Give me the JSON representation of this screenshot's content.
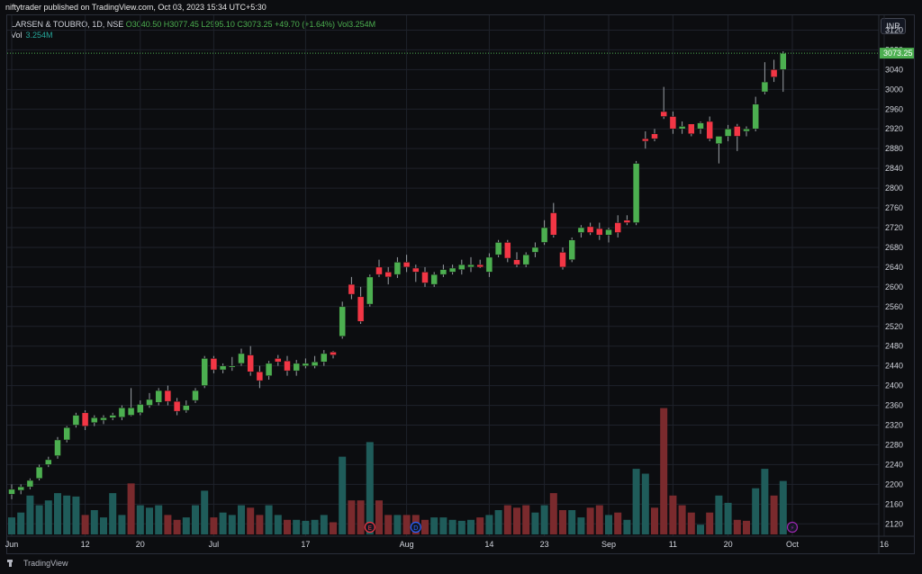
{
  "header": {
    "publish_text": "niftytrader published on TradingView.com, Oct 03, 2023 15:34 UTC+5:30",
    "symbol": "LARSEN & TOUBRO, 1D, NSE",
    "open": "O3040.50",
    "high": "H3077.45",
    "low": "L2995.10",
    "close": "C3073.25",
    "change": "+49.70 (+1.64%)",
    "vol_inline": "Vol3.254M",
    "vol_label": "Vol",
    "vol_value": "3.254M",
    "currency_button": "INR"
  },
  "footer": {
    "logo_text": "TradingView"
  },
  "colors": {
    "up": "#4caf50",
    "down": "#f23645",
    "vol_up": "#1f5c5a",
    "vol_down": "#7a2a2d",
    "grid": "#1f222b",
    "text": "#d1d4dc",
    "last_price": "#4caf50"
  },
  "chart_data": {
    "type": "candlestick",
    "last_price": "3073.25",
    "y_ticks": [
      2120,
      2160,
      2200,
      2240,
      2280,
      2320,
      2360,
      2400,
      2440,
      2480,
      2520,
      2560,
      2600,
      2640,
      2680,
      2720,
      2760,
      2800,
      2840,
      2880,
      2920,
      2960,
      3000,
      3040,
      3080,
      3120
    ],
    "y_range": [
      2095,
      3150
    ],
    "x_ticks": [
      {
        "label": "Jun",
        "index": 0
      },
      {
        "label": "12",
        "index": 8
      },
      {
        "label": "20",
        "index": 14
      },
      {
        "label": "Jul",
        "index": 22
      },
      {
        "label": "17",
        "index": 32
      },
      {
        "label": "Aug",
        "index": 43
      },
      {
        "label": "14",
        "index": 52
      },
      {
        "label": "23",
        "index": 58
      },
      {
        "label": "Sep",
        "index": 65
      },
      {
        "label": "11",
        "index": 72
      },
      {
        "label": "20",
        "index": 78
      },
      {
        "label": "Oct",
        "index": 85
      },
      {
        "label": "16",
        "index": 95
      }
    ],
    "event_markers": [
      {
        "label": "E",
        "index": 39,
        "color": "#f23645"
      },
      {
        "label": "D",
        "index": 44,
        "color": "#2962ff"
      },
      {
        "label": "⚡",
        "index": 85,
        "color": "#9c27b0"
      }
    ],
    "candles": [
      {
        "o": 2180,
        "h": 2200,
        "l": 2170,
        "c": 2190
      },
      {
        "o": 2188,
        "h": 2200,
        "l": 2180,
        "c": 2195
      },
      {
        "o": 2195,
        "h": 2212,
        "l": 2190,
        "c": 2208
      },
      {
        "o": 2212,
        "h": 2240,
        "l": 2208,
        "c": 2235
      },
      {
        "o": 2240,
        "h": 2256,
        "l": 2235,
        "c": 2250
      },
      {
        "o": 2258,
        "h": 2296,
        "l": 2252,
        "c": 2290
      },
      {
        "o": 2290,
        "h": 2318,
        "l": 2285,
        "c": 2315
      },
      {
        "o": 2320,
        "h": 2345,
        "l": 2315,
        "c": 2340
      },
      {
        "o": 2345,
        "h": 2350,
        "l": 2310,
        "c": 2318
      },
      {
        "o": 2325,
        "h": 2340,
        "l": 2318,
        "c": 2335
      },
      {
        "o": 2330,
        "h": 2340,
        "l": 2322,
        "c": 2335
      },
      {
        "o": 2335,
        "h": 2345,
        "l": 2330,
        "c": 2340
      },
      {
        "o": 2336,
        "h": 2360,
        "l": 2330,
        "c": 2355
      },
      {
        "o": 2340,
        "h": 2395,
        "l": 2338,
        "c": 2355
      },
      {
        "o": 2345,
        "h": 2370,
        "l": 2340,
        "c": 2362
      },
      {
        "o": 2360,
        "h": 2385,
        "l": 2355,
        "c": 2372
      },
      {
        "o": 2366,
        "h": 2395,
        "l": 2360,
        "c": 2390
      },
      {
        "o": 2390,
        "h": 2400,
        "l": 2360,
        "c": 2368
      },
      {
        "o": 2368,
        "h": 2375,
        "l": 2340,
        "c": 2348
      },
      {
        "o": 2350,
        "h": 2370,
        "l": 2345,
        "c": 2360
      },
      {
        "o": 2370,
        "h": 2395,
        "l": 2365,
        "c": 2390
      },
      {
        "o": 2400,
        "h": 2460,
        "l": 2395,
        "c": 2455
      },
      {
        "o": 2455,
        "h": 2460,
        "l": 2425,
        "c": 2432
      },
      {
        "o": 2432,
        "h": 2445,
        "l": 2425,
        "c": 2440
      },
      {
        "o": 2438,
        "h": 2458,
        "l": 2430,
        "c": 2440
      },
      {
        "o": 2445,
        "h": 2475,
        "l": 2440,
        "c": 2465
      },
      {
        "o": 2462,
        "h": 2480,
        "l": 2420,
        "c": 2428
      },
      {
        "o": 2428,
        "h": 2440,
        "l": 2395,
        "c": 2410
      },
      {
        "o": 2420,
        "h": 2450,
        "l": 2412,
        "c": 2445
      },
      {
        "o": 2455,
        "h": 2462,
        "l": 2440,
        "c": 2448
      },
      {
        "o": 2450,
        "h": 2460,
        "l": 2420,
        "c": 2430
      },
      {
        "o": 2430,
        "h": 2452,
        "l": 2420,
        "c": 2445
      },
      {
        "o": 2440,
        "h": 2455,
        "l": 2435,
        "c": 2445
      },
      {
        "o": 2440,
        "h": 2460,
        "l": 2435,
        "c": 2448
      },
      {
        "o": 2448,
        "h": 2472,
        "l": 2440,
        "c": 2465
      },
      {
        "o": 2468,
        "h": 2470,
        "l": 2455,
        "c": 2462
      },
      {
        "o": 2500,
        "h": 2570,
        "l": 2495,
        "c": 2560
      },
      {
        "o": 2605,
        "h": 2620,
        "l": 2575,
        "c": 2585
      },
      {
        "o": 2580,
        "h": 2600,
        "l": 2525,
        "c": 2530
      },
      {
        "o": 2565,
        "h": 2625,
        "l": 2560,
        "c": 2620
      },
      {
        "o": 2640,
        "h": 2655,
        "l": 2620,
        "c": 2625
      },
      {
        "o": 2630,
        "h": 2640,
        "l": 2605,
        "c": 2620
      },
      {
        "o": 2625,
        "h": 2660,
        "l": 2618,
        "c": 2650
      },
      {
        "o": 2650,
        "h": 2665,
        "l": 2630,
        "c": 2640
      },
      {
        "o": 2638,
        "h": 2645,
        "l": 2610,
        "c": 2630
      },
      {
        "o": 2630,
        "h": 2640,
        "l": 2600,
        "c": 2608
      },
      {
        "o": 2605,
        "h": 2630,
        "l": 2600,
        "c": 2625
      },
      {
        "o": 2625,
        "h": 2645,
        "l": 2620,
        "c": 2635
      },
      {
        "o": 2630,
        "h": 2645,
        "l": 2625,
        "c": 2638
      },
      {
        "o": 2635,
        "h": 2655,
        "l": 2625,
        "c": 2645
      },
      {
        "o": 2640,
        "h": 2660,
        "l": 2630,
        "c": 2645
      },
      {
        "o": 2645,
        "h": 2655,
        "l": 2638,
        "c": 2640
      },
      {
        "o": 2630,
        "h": 2668,
        "l": 2620,
        "c": 2660
      },
      {
        "o": 2665,
        "h": 2695,
        "l": 2660,
        "c": 2690
      },
      {
        "o": 2690,
        "h": 2695,
        "l": 2650,
        "c": 2658
      },
      {
        "o": 2655,
        "h": 2670,
        "l": 2640,
        "c": 2645
      },
      {
        "o": 2645,
        "h": 2670,
        "l": 2640,
        "c": 2665
      },
      {
        "o": 2670,
        "h": 2690,
        "l": 2660,
        "c": 2680
      },
      {
        "o": 2690,
        "h": 2735,
        "l": 2685,
        "c": 2720
      },
      {
        "o": 2750,
        "h": 2770,
        "l": 2700,
        "c": 2705
      },
      {
        "o": 2670,
        "h": 2680,
        "l": 2635,
        "c": 2640
      },
      {
        "o": 2655,
        "h": 2700,
        "l": 2650,
        "c": 2695
      },
      {
        "o": 2710,
        "h": 2725,
        "l": 2700,
        "c": 2720
      },
      {
        "o": 2722,
        "h": 2730,
        "l": 2705,
        "c": 2710
      },
      {
        "o": 2718,
        "h": 2730,
        "l": 2695,
        "c": 2705
      },
      {
        "o": 2705,
        "h": 2720,
        "l": 2690,
        "c": 2716
      },
      {
        "o": 2730,
        "h": 2745,
        "l": 2700,
        "c": 2710
      },
      {
        "o": 2735,
        "h": 2745,
        "l": 2725,
        "c": 2730
      },
      {
        "o": 2730,
        "h": 2855,
        "l": 2725,
        "c": 2850
      },
      {
        "o": 2900,
        "h": 2915,
        "l": 2880,
        "c": 2895
      },
      {
        "o": 2910,
        "h": 2920,
        "l": 2895,
        "c": 2900
      },
      {
        "o": 2955,
        "h": 3005,
        "l": 2940,
        "c": 2945
      },
      {
        "o": 2945,
        "h": 2955,
        "l": 2910,
        "c": 2920
      },
      {
        "o": 2920,
        "h": 2935,
        "l": 2910,
        "c": 2925
      },
      {
        "o": 2930,
        "h": 2930,
        "l": 2905,
        "c": 2910
      },
      {
        "o": 2920,
        "h": 2935,
        "l": 2910,
        "c": 2932
      },
      {
        "o": 2935,
        "h": 2945,
        "l": 2895,
        "c": 2900
      },
      {
        "o": 2890,
        "h": 2905,
        "l": 2850,
        "c": 2905
      },
      {
        "o": 2905,
        "h": 2928,
        "l": 2895,
        "c": 2920
      },
      {
        "o": 2925,
        "h": 2930,
        "l": 2875,
        "c": 2905
      },
      {
        "o": 2915,
        "h": 2925,
        "l": 2905,
        "c": 2920
      },
      {
        "o": 2920,
        "h": 2985,
        "l": 2915,
        "c": 2970
      },
      {
        "o": 2995,
        "h": 3055,
        "l": 2990,
        "c": 3015
      },
      {
        "o": 3040,
        "h": 3060,
        "l": 3015,
        "c": 3025
      },
      {
        "o": 3040,
        "h": 3077,
        "l": 2995,
        "c": 3073
      }
    ],
    "volume": [
      {
        "v": 0.35,
        "up": true
      },
      {
        "v": 0.45,
        "up": true
      },
      {
        "v": 0.8,
        "up": true
      },
      {
        "v": 0.6,
        "up": true
      },
      {
        "v": 0.7,
        "up": true
      },
      {
        "v": 0.85,
        "up": true
      },
      {
        "v": 0.8,
        "up": true
      },
      {
        "v": 0.78,
        "up": true
      },
      {
        "v": 0.4,
        "up": false
      },
      {
        "v": 0.5,
        "up": true
      },
      {
        "v": 0.35,
        "up": true
      },
      {
        "v": 0.85,
        "up": true
      },
      {
        "v": 0.4,
        "up": true
      },
      {
        "v": 1.05,
        "up": false
      },
      {
        "v": 0.6,
        "up": true
      },
      {
        "v": 0.55,
        "up": true
      },
      {
        "v": 0.6,
        "up": true
      },
      {
        "v": 0.4,
        "up": false
      },
      {
        "v": 0.3,
        "up": false
      },
      {
        "v": 0.35,
        "up": true
      },
      {
        "v": 0.6,
        "up": true
      },
      {
        "v": 0.9,
        "up": true
      },
      {
        "v": 0.35,
        "up": false
      },
      {
        "v": 0.45,
        "up": true
      },
      {
        "v": 0.4,
        "up": true
      },
      {
        "v": 0.6,
        "up": true
      },
      {
        "v": 0.55,
        "up": false
      },
      {
        "v": 0.4,
        "up": false
      },
      {
        "v": 0.6,
        "up": true
      },
      {
        "v": 0.4,
        "up": true
      },
      {
        "v": 0.3,
        "up": false
      },
      {
        "v": 0.3,
        "up": true
      },
      {
        "v": 0.28,
        "up": true
      },
      {
        "v": 0.3,
        "up": true
      },
      {
        "v": 0.4,
        "up": true
      },
      {
        "v": 0.25,
        "up": false
      },
      {
        "v": 1.6,
        "up": true
      },
      {
        "v": 0.7,
        "up": false
      },
      {
        "v": 0.7,
        "up": false
      },
      {
        "v": 1.9,
        "up": true
      },
      {
        "v": 0.7,
        "up": false
      },
      {
        "v": 0.4,
        "up": false
      },
      {
        "v": 0.4,
        "up": true
      },
      {
        "v": 0.4,
        "up": false
      },
      {
        "v": 0.4,
        "up": false
      },
      {
        "v": 0.3,
        "up": false
      },
      {
        "v": 0.35,
        "up": true
      },
      {
        "v": 0.35,
        "up": true
      },
      {
        "v": 0.3,
        "up": true
      },
      {
        "v": 0.28,
        "up": true
      },
      {
        "v": 0.3,
        "up": true
      },
      {
        "v": 0.35,
        "up": false
      },
      {
        "v": 0.4,
        "up": true
      },
      {
        "v": 0.5,
        "up": true
      },
      {
        "v": 0.6,
        "up": false
      },
      {
        "v": 0.55,
        "up": false
      },
      {
        "v": 0.6,
        "up": false
      },
      {
        "v": 0.45,
        "up": true
      },
      {
        "v": 0.6,
        "up": true
      },
      {
        "v": 0.85,
        "up": false
      },
      {
        "v": 0.5,
        "up": false
      },
      {
        "v": 0.5,
        "up": true
      },
      {
        "v": 0.35,
        "up": true
      },
      {
        "v": 0.55,
        "up": false
      },
      {
        "v": 0.6,
        "up": false
      },
      {
        "v": 0.4,
        "up": true
      },
      {
        "v": 0.45,
        "up": false
      },
      {
        "v": 0.3,
        "up": true
      },
      {
        "v": 1.35,
        "up": true
      },
      {
        "v": 1.25,
        "up": true
      },
      {
        "v": 0.55,
        "up": false
      },
      {
        "v": 2.6,
        "up": false
      },
      {
        "v": 0.8,
        "up": false
      },
      {
        "v": 0.6,
        "up": false
      },
      {
        "v": 0.45,
        "up": false
      },
      {
        "v": 0.2,
        "up": true
      },
      {
        "v": 0.45,
        "up": false
      },
      {
        "v": 0.8,
        "up": true
      },
      {
        "v": 0.65,
        "up": true
      },
      {
        "v": 0.3,
        "up": false
      },
      {
        "v": 0.28,
        "up": false
      },
      {
        "v": 0.95,
        "up": true
      },
      {
        "v": 1.35,
        "up": true
      },
      {
        "v": 0.8,
        "up": false
      },
      {
        "v": 1.1,
        "up": true
      }
    ]
  }
}
